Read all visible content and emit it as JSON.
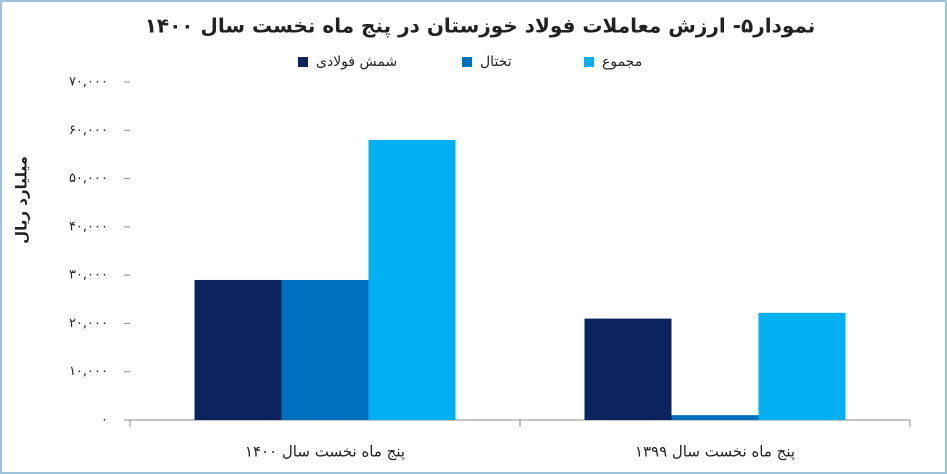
{
  "chart_data": {
    "type": "bar",
    "title": "نمودار۵- ارزش معاملات فولاد خوزستان در پنج ماه نخست سال ۱۴۰۰",
    "y_label": "میلیارد ریال",
    "categories": [
      "پنج ماه نخست سال ۱۴۰۰",
      "پنج ماه نخست سال ۱۳۹۹"
    ],
    "series": [
      {
        "name": "شمش فولادی",
        "color": "#0b2460",
        "values": [
          29000,
          21000
        ]
      },
      {
        "name": "تختال",
        "color": "#0070c0",
        "values": [
          29000,
          1000
        ]
      },
      {
        "name": "مجموع",
        "color": "#00b0f0",
        "values": [
          58000,
          22200
        ]
      }
    ],
    "ylim": [
      0,
      70000
    ],
    "yticks": [
      {
        "value": 0,
        "label": "۰"
      },
      {
        "value": 10000,
        "label": "۱۰,۰۰۰"
      },
      {
        "value": 20000,
        "label": "۲۰,۰۰۰"
      },
      {
        "value": 30000,
        "label": "۳۰,۰۰۰"
      },
      {
        "value": 40000,
        "label": "۴۰,۰۰۰"
      },
      {
        "value": 50000,
        "label": "۵۰,۰۰۰"
      },
      {
        "value": 60000,
        "label": "۶۰,۰۰۰"
      },
      {
        "value": 70000,
        "label": "۷۰,۰۰۰"
      }
    ],
    "grid": false
  }
}
